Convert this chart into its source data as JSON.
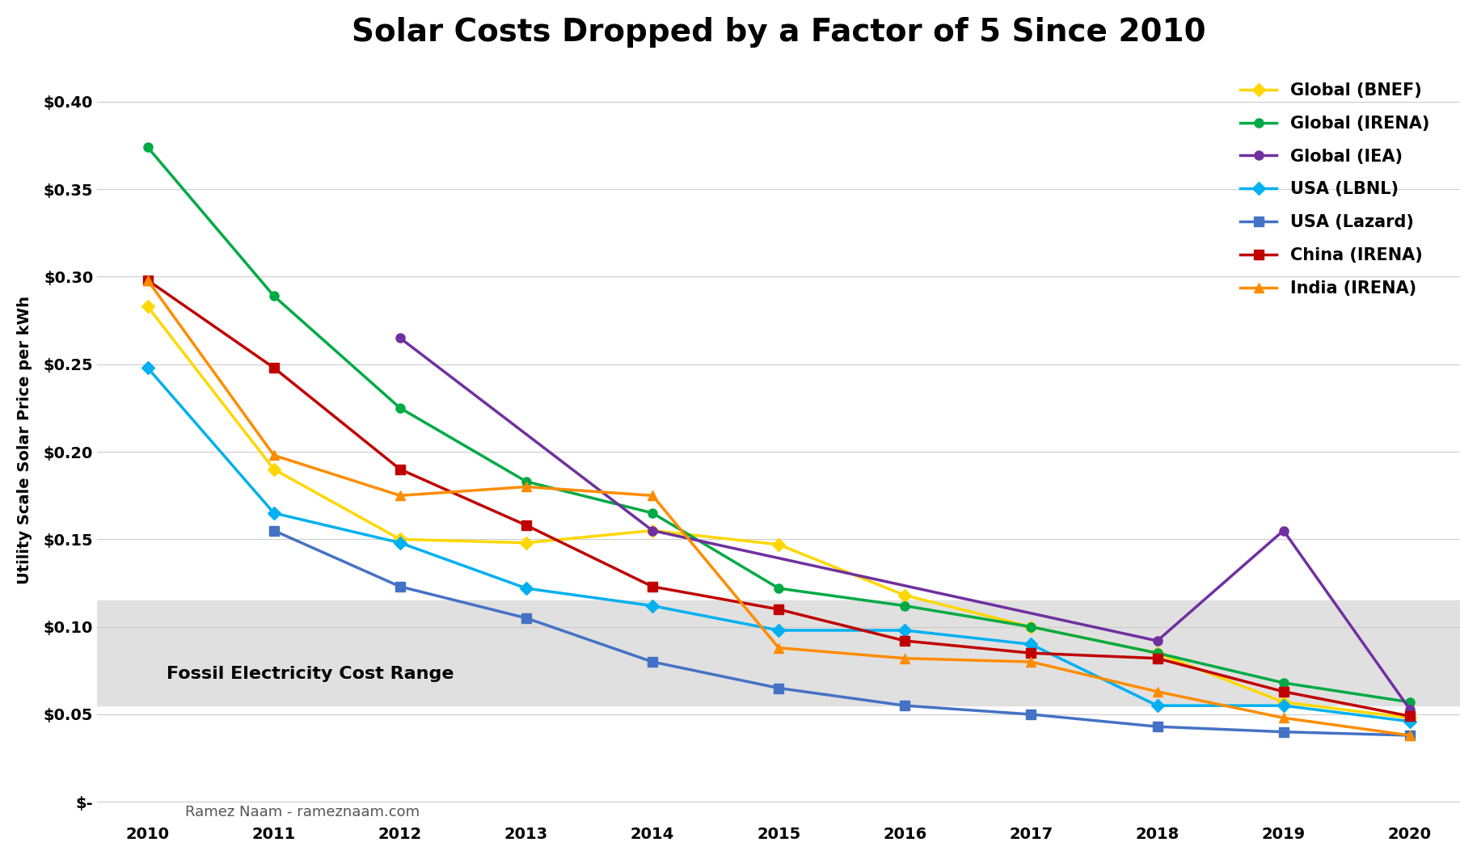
{
  "title": "Solar Costs Dropped by a Factor of 5 Since 2010",
  "ylabel": "Utility Scale Solar Price per kWh",
  "credit": "Ramez Naam - rameznaam.com",
  "fossil_label": "Fossil Electricity Cost Range",
  "fossil_band": [
    0.055,
    0.115
  ],
  "fossil_color": "#e0e0e0",
  "years": [
    2010,
    2011,
    2012,
    2013,
    2014,
    2015,
    2016,
    2017,
    2018,
    2019,
    2020
  ],
  "series": [
    {
      "name": "Global (BNEF)",
      "color": "#FFD700",
      "marker": "D",
      "markersize": 8,
      "data": [
        0.283,
        0.19,
        0.15,
        0.148,
        0.155,
        0.147,
        0.118,
        0.1,
        0.085,
        0.057,
        0.048
      ]
    },
    {
      "name": "Global (IRENA)",
      "color": "#00AA44",
      "marker": "o",
      "markersize": 8,
      "data": [
        0.374,
        0.289,
        0.225,
        0.183,
        0.165,
        0.122,
        0.112,
        0.1,
        0.085,
        0.068,
        0.057
      ]
    },
    {
      "name": "Global (IEA)",
      "color": "#7030A0",
      "marker": "o",
      "markersize": 8,
      "data": [
        null,
        null,
        0.265,
        null,
        0.155,
        null,
        null,
        null,
        0.092,
        0.155,
        0.053
      ]
    },
    {
      "name": "USA (LBNL)",
      "color": "#00B0F0",
      "marker": "D",
      "markersize": 8,
      "data": [
        0.248,
        0.165,
        0.148,
        0.122,
        0.112,
        0.098,
        0.098,
        0.09,
        0.055,
        0.055,
        0.046
      ]
    },
    {
      "name": "USA (Lazard)",
      "color": "#4472C4",
      "marker": "s",
      "markersize": 8,
      "data": [
        null,
        0.155,
        0.123,
        0.105,
        0.08,
        0.065,
        0.055,
        0.05,
        0.043,
        0.04,
        0.038
      ]
    },
    {
      "name": "China (IRENA)",
      "color": "#C00000",
      "marker": "s",
      "markersize": 8,
      "data": [
        0.298,
        0.248,
        0.19,
        0.158,
        0.123,
        0.11,
        0.092,
        0.085,
        0.082,
        0.063,
        0.049
      ]
    },
    {
      "name": "India (IRENA)",
      "color": "#FF8C00",
      "marker": "^",
      "markersize": 9,
      "data": [
        0.298,
        0.198,
        0.175,
        0.18,
        0.175,
        0.088,
        0.082,
        0.08,
        0.063,
        0.048,
        0.038
      ]
    }
  ],
  "xlim": [
    2009.6,
    2020.4
  ],
  "ylim": [
    -0.012,
    0.425
  ],
  "yticks": [
    0.0,
    0.05,
    0.1,
    0.15,
    0.2,
    0.25,
    0.3,
    0.35,
    0.4
  ],
  "ytick_labels": [
    "$-",
    "$0.05",
    "$0.10",
    "$0.15",
    "$0.20",
    "$0.25",
    "$0.30",
    "$0.35",
    "$0.40"
  ],
  "title_fontsize": 28,
  "label_fontsize": 14,
  "tick_fontsize": 14,
  "legend_fontsize": 15,
  "credit_fontsize": 13
}
